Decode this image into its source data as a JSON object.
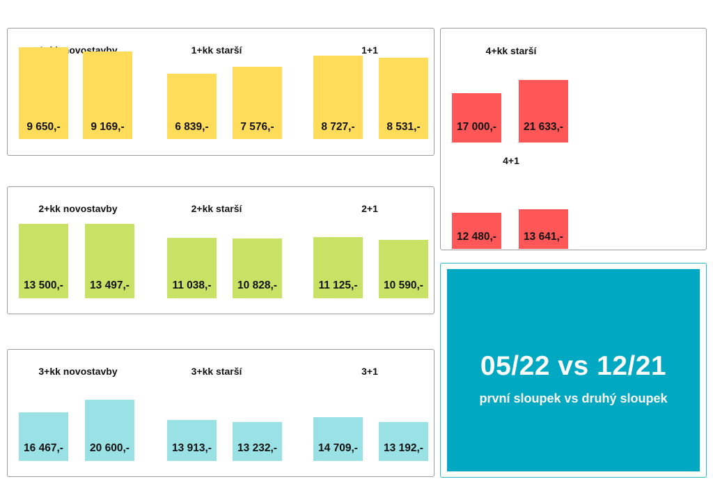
{
  "summary": {
    "period": "05/22 vs 12/21",
    "note": "první sloupek vs druhý sloupek"
  },
  "colors": {
    "yellow": "#ffdc5a",
    "green": "#c9e265",
    "cyan": "#9ae1e6",
    "red": "#ff5757",
    "summary_bg": "#00a9c1"
  },
  "chart_data": [
    {
      "type": "bar",
      "panel": "row-1",
      "groups": [
        {
          "title": "1+kk novostavby",
          "values": [
            9650,
            9169
          ],
          "labels": [
            "9 650,-",
            "9 169,-"
          ]
        },
        {
          "title": "1+kk starší",
          "values": [
            6839,
            7576
          ],
          "labels": [
            "6 839,-",
            "7 576,-"
          ]
        },
        {
          "title": "1+1",
          "values": [
            8727,
            8531
          ],
          "labels": [
            "8 727,-",
            "8 531,-"
          ]
        }
      ],
      "color": "yellow"
    },
    {
      "type": "bar",
      "panel": "row-2",
      "groups": [
        {
          "title": "2+kk novostavby",
          "values": [
            13500,
            13497
          ],
          "labels": [
            "13 500,-",
            "13 497,-"
          ]
        },
        {
          "title": "2+kk starší",
          "values": [
            11038,
            10828
          ],
          "labels": [
            "11 038,-",
            "10 828,-"
          ]
        },
        {
          "title": "2+1",
          "values": [
            11125,
            10590
          ],
          "labels": [
            "11 125,-",
            "10 590,-"
          ]
        }
      ],
      "color": "green"
    },
    {
      "type": "bar",
      "panel": "row-3",
      "groups": [
        {
          "title": "3+kk novostavby",
          "values": [
            16467,
            20600
          ],
          "labels": [
            "16 467,-",
            "20 600,-"
          ]
        },
        {
          "title": "3+kk starší",
          "values": [
            13913,
            13232
          ],
          "labels": [
            "13 913,-",
            "13 232,-"
          ]
        },
        {
          "title": "3+1",
          "values": [
            14709,
            13192
          ],
          "labels": [
            "14 709,-",
            "13 192,-"
          ]
        }
      ],
      "color": "cyan"
    },
    {
      "type": "bar",
      "panel": "right-top",
      "groups": [
        {
          "title": "4+kk starší",
          "values": [
            17000,
            21633
          ],
          "labels": [
            "17 000,-",
            "21 633,-"
          ]
        },
        {
          "title": "4+1",
          "values": [
            12480,
            13641
          ],
          "labels": [
            "12 480,-",
            "13 641,-"
          ]
        }
      ],
      "color": "red"
    }
  ]
}
